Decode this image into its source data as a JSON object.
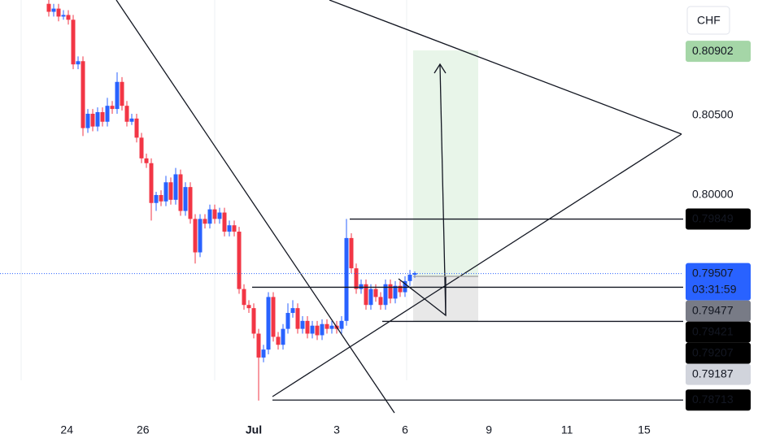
{
  "chart_data": {
    "type": "candlestick",
    "currency": "CHF",
    "up_color": "#2962ff",
    "down_color": "#f23645",
    "ylim": [
      0.78597,
      0.81224
    ],
    "yticks": [
      {
        "value": 0.805,
        "label": "0.80500"
      },
      {
        "value": 0.8,
        "label": "0.80000"
      }
    ],
    "xlim": [
      -10,
      130
    ],
    "xticks": [
      {
        "value": 3.7,
        "label": "24"
      },
      {
        "value": 19.3,
        "label": "26"
      },
      {
        "value": 42,
        "label": "Jul"
      },
      {
        "value": 59,
        "label": "3"
      },
      {
        "value": 73,
        "label": "6"
      },
      {
        "value": 90.2,
        "label": "9"
      },
      {
        "value": 106.2,
        "label": "11"
      },
      {
        "value": 122,
        "label": "15"
      }
    ],
    "ohlc": [
      [
        0.812,
        0.8123,
        0.8112,
        0.8115
      ],
      [
        0.8115,
        0.812,
        0.8112,
        0.8117
      ],
      [
        0.8117,
        0.812,
        0.8109,
        0.8112
      ],
      [
        0.8112,
        0.8116,
        0.811,
        0.8113
      ],
      [
        0.8113,
        0.8116,
        0.8107,
        0.811
      ],
      [
        0.811,
        0.8113,
        0.8079,
        0.8082
      ],
      [
        0.8082,
        0.8087,
        0.8079,
        0.8084
      ],
      [
        0.8084,
        0.8087,
        0.8037,
        0.8042
      ],
      [
        0.8042,
        0.8054,
        0.8039,
        0.8051
      ],
      [
        0.8051,
        0.8054,
        0.804,
        0.8043
      ],
      [
        0.8043,
        0.8055,
        0.804,
        0.8052
      ],
      [
        0.8052,
        0.8055,
        0.8043,
        0.8046
      ],
      [
        0.8046,
        0.8061,
        0.8043,
        0.8056
      ],
      [
        0.8056,
        0.8059,
        0.8051,
        0.8054
      ],
      [
        0.8054,
        0.8077,
        0.8051,
        0.8071
      ],
      [
        0.8071,
        0.8074,
        0.8053,
        0.8056
      ],
      [
        0.8056,
        0.8059,
        0.8043,
        0.8046
      ],
      [
        0.8046,
        0.8051,
        0.8044,
        0.8048
      ],
      [
        0.8048,
        0.8051,
        0.8033,
        0.8036
      ],
      [
        0.8036,
        0.8039,
        0.802,
        0.8023
      ],
      [
        0.8023,
        0.8026,
        0.8017,
        0.802
      ],
      [
        0.802,
        0.8023,
        0.7984,
        0.7995
      ],
      [
        0.7995,
        0.8002,
        0.799,
        0.8
      ],
      [
        0.8,
        0.8003,
        0.7993,
        0.7996
      ],
      [
        0.7996,
        0.8012,
        0.7993,
        0.8008
      ],
      [
        0.8008,
        0.8011,
        0.7994,
        0.7997
      ],
      [
        0.7997,
        0.8017,
        0.7994,
        0.8013
      ],
      [
        0.8013,
        0.8016,
        0.7987,
        0.799
      ],
      [
        0.799,
        0.8008,
        0.7987,
        0.8005
      ],
      [
        0.8005,
        0.8008,
        0.7982,
        0.7985
      ],
      [
        0.7985,
        0.7988,
        0.7957,
        0.7964
      ],
      [
        0.7964,
        0.7988,
        0.7961,
        0.7985
      ],
      [
        0.7985,
        0.7988,
        0.7979,
        0.7982
      ],
      [
        0.7982,
        0.7994,
        0.7979,
        0.7991
      ],
      [
        0.7991,
        0.7994,
        0.7982,
        0.7985
      ],
      [
        0.7985,
        0.7992,
        0.7982,
        0.7989
      ],
      [
        0.7989,
        0.7992,
        0.7974,
        0.7977
      ],
      [
        0.7977,
        0.7984,
        0.7974,
        0.7981
      ],
      [
        0.7981,
        0.7984,
        0.7974,
        0.7977
      ],
      [
        0.7977,
        0.798,
        0.7938,
        0.7941
      ],
      [
        0.7941,
        0.7944,
        0.7928,
        0.7931
      ],
      [
        0.7931,
        0.7934,
        0.7926,
        0.7929
      ],
      [
        0.7929,
        0.7932,
        0.791,
        0.7913
      ],
      [
        0.7913,
        0.7916,
        0.7871,
        0.7898
      ],
      [
        0.7898,
        0.7906,
        0.7895,
        0.7903
      ],
      [
        0.7903,
        0.7939,
        0.79,
        0.7936
      ],
      [
        0.7936,
        0.7939,
        0.7908,
        0.7911
      ],
      [
        0.7911,
        0.7914,
        0.7903,
        0.7906
      ],
      [
        0.7906,
        0.7919,
        0.7903,
        0.7916
      ],
      [
        0.7916,
        0.7932,
        0.7913,
        0.7926
      ],
      [
        0.7926,
        0.7934,
        0.7923,
        0.7929
      ],
      [
        0.7929,
        0.7932,
        0.7913,
        0.7916
      ],
      [
        0.7916,
        0.7924,
        0.7913,
        0.7921
      ],
      [
        0.7921,
        0.7924,
        0.791,
        0.7913
      ],
      [
        0.7913,
        0.7921,
        0.791,
        0.7918
      ],
      [
        0.7918,
        0.7921,
        0.7909,
        0.7912
      ],
      [
        0.7912,
        0.7922,
        0.7909,
        0.7919
      ],
      [
        0.7919,
        0.7922,
        0.7913,
        0.7916
      ],
      [
        0.7916,
        0.7921,
        0.7913,
        0.7918
      ],
      [
        0.7918,
        0.7921,
        0.7913,
        0.7916
      ],
      [
        0.7916,
        0.7924,
        0.7913,
        0.7921
      ],
      [
        0.7921,
        0.7985,
        0.7918,
        0.7973
      ],
      [
        0.7973,
        0.7976,
        0.7951,
        0.7954
      ],
      [
        0.7954,
        0.7957,
        0.7938,
        0.7941
      ],
      [
        0.7941,
        0.7947,
        0.7938,
        0.7944
      ],
      [
        0.7944,
        0.7947,
        0.7928,
        0.7931
      ],
      [
        0.7931,
        0.7944,
        0.7928,
        0.7941
      ],
      [
        0.7941,
        0.7944,
        0.7933,
        0.7936
      ],
      [
        0.7936,
        0.7939,
        0.7928,
        0.7931
      ],
      [
        0.7931,
        0.7947,
        0.7928,
        0.7944
      ],
      [
        0.7944,
        0.7947,
        0.7932,
        0.7935
      ],
      [
        0.7935,
        0.7946,
        0.7932,
        0.7943
      ],
      [
        0.7943,
        0.7946,
        0.7936,
        0.7939
      ],
      [
        0.7939,
        0.7949,
        0.7936,
        0.7946
      ],
      [
        0.7946,
        0.7953,
        0.7943,
        0.795
      ],
      [
        0.795,
        0.7952,
        0.7948,
        0.7951
      ]
    ],
    "price_labels": [
      {
        "value": 0.80902,
        "label": "0.80902",
        "color": "#a5d6a7",
        "text_color": "#131722"
      },
      {
        "value": 0.79849,
        "label": "0.79849",
        "color": "#000000",
        "text_color": "#ffffff"
      },
      {
        "value": 0.79507,
        "label": "0.79507",
        "countdown": "03:31:59",
        "color": "#2962ff",
        "text_color": "#ffffff"
      },
      {
        "value": 0.79477,
        "label": "0.79477",
        "color": "#787b86",
        "text_color": "#ffffff"
      },
      {
        "value": 0.79421,
        "label": "0.79421",
        "color": "#000000",
        "text_color": "#ffffff"
      },
      {
        "value": 0.79207,
        "label": "0.79207",
        "color": "#000000",
        "text_color": "#ffffff"
      },
      {
        "value": 0.79187,
        "label": "0.79187",
        "color": "#d1d4dc",
        "text_color": "#131722"
      },
      {
        "value": 0.78713,
        "label": "0.78713",
        "color": "#000000",
        "text_color": "#ffffff"
      }
    ]
  }
}
